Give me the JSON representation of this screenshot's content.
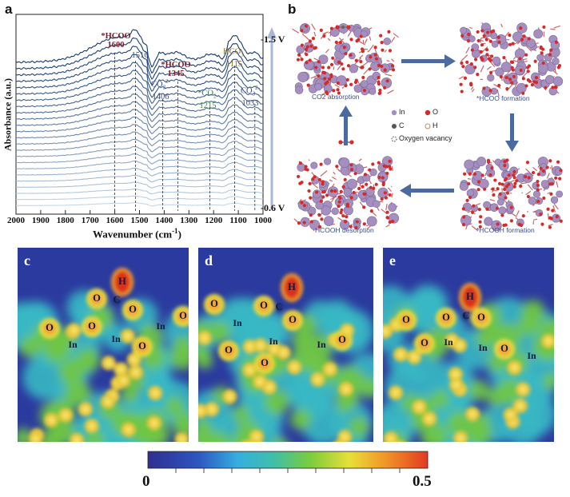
{
  "panels": {
    "a": "a",
    "b": "b",
    "c": "c",
    "d": "d",
    "e": "e"
  },
  "panel_a": {
    "ylabel": "Absorbance (a.u.)",
    "xlabel_main": "Wavenumber (cm",
    "xlabel_sup": "-1",
    "xlabel_end": ")",
    "potential_top": "-1.5 V",
    "potential_bottom": "-0.6 V",
    "annotations": {
      "hcoo1600_name": "*HCOO",
      "hcoo1600_val": "1600",
      "v1516": "1516",
      "co3_1406_name": "CO",
      "co3_1406_val": "1406",
      "hcoo1345_name": "*HCOO",
      "hcoo1345_val": "1345",
      "co2_1215_name": "*CO",
      "co2_1215_val": "1215",
      "hco3_name": "HCO",
      "hco3_val": "1115",
      "co3_1033_name": "CO",
      "co3_1033_val": "1033",
      "sub3": "3",
      "sub2": "2",
      "sup2m": "2-",
      "supm": "-",
      "supdash": "-"
    }
  },
  "chart_data": {
    "type": "line",
    "title": "",
    "xlabel": "Wavenumber (cm-1)",
    "ylabel": "Absorbance (a.u.)",
    "xlim": [
      2000,
      1000
    ],
    "x_reversed": true,
    "x_ticks": [
      "2000",
      "1900",
      "1800",
      "1700",
      "1600",
      "1500",
      "1400",
      "1300",
      "1200",
      "1100",
      "1000"
    ],
    "series_count": 24,
    "series_range": [
      "-0.6 V",
      "-1.5 V"
    ],
    "marked_peaks_cm-1": [
      1600,
      1516,
      1406,
      1345,
      1215,
      1115,
      1033
    ]
  },
  "panel_b": {
    "states": [
      "CO2 absorption",
      "*HCOO formation",
      "*HCOOH formation",
      "HCOOH desorption"
    ],
    "legend": {
      "in": "In",
      "o": "O",
      "c": "C",
      "h": "H",
      "vac": "Oxygen vacancy"
    }
  },
  "maps": {
    "c": {
      "labels": [
        "H",
        "O",
        "C",
        "O",
        "O",
        "O",
        "In",
        "O",
        "In",
        "In",
        "O"
      ]
    },
    "d": {
      "labels": [
        "H",
        "O",
        "C",
        "O",
        "O",
        "In",
        "O",
        "In",
        "O",
        "In",
        "O"
      ]
    },
    "e": {
      "labels": [
        "H",
        "O",
        "C",
        "O",
        "O",
        "O",
        "In",
        "In",
        "O",
        "In"
      ]
    }
  },
  "colorbar": {
    "min": "0",
    "max": "0.5"
  },
  "colors": {
    "map_bg": "#2b3a9e",
    "accent_arrow": "#4a6aa0"
  }
}
